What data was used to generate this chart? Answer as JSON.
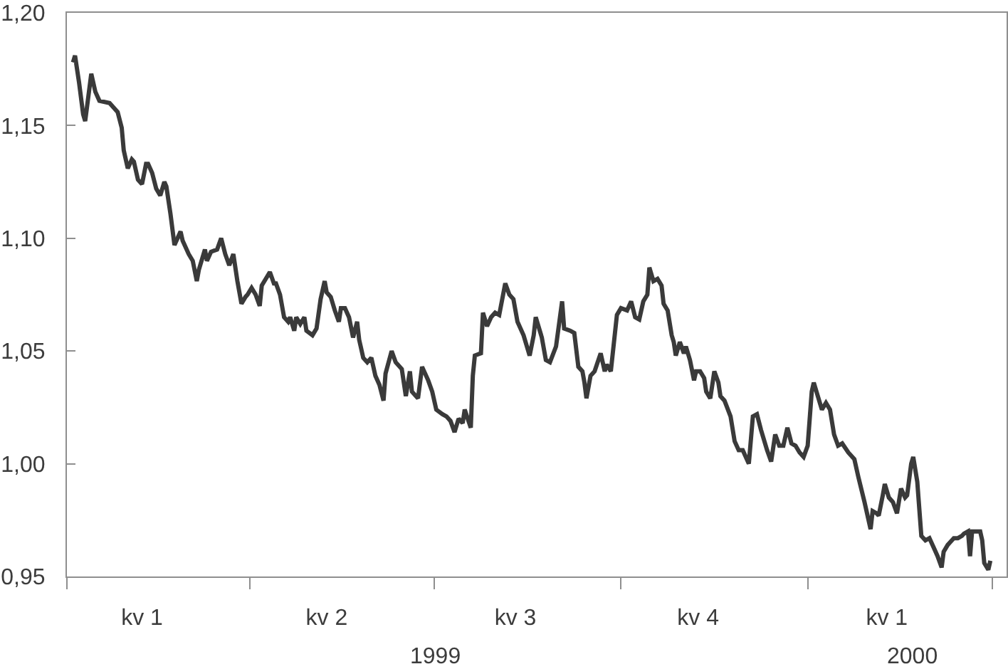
{
  "chart_data": {
    "type": "line",
    "xlim": [
      "1999-01-01",
      "2000-04-08"
    ],
    "xticks": [
      {
        "value": "1999-01-01",
        "label": null
      },
      {
        "value": "1999-04-01",
        "label": null
      },
      {
        "value": "1999-07-01",
        "label": null
      },
      {
        "value": "1999-10-01",
        "label": null
      },
      {
        "value": "2000-01-01",
        "label": null
      },
      {
        "value": "2000-04-01",
        "label": null
      },
      {
        "value": "1999-02-07",
        "label": "kv 1"
      },
      {
        "value": "1999-05-09",
        "label": "kv 2"
      },
      {
        "value": "1999-08-10",
        "label": "kv 3"
      },
      {
        "value": "1999-11-08",
        "label": "kv 4"
      },
      {
        "value": "2000-02-09",
        "label": "kv 1"
      }
    ],
    "x2lim": [
      "1999-01-01",
      "2000-04-08"
    ],
    "x2ticks": [
      {
        "value": "1999-07-02",
        "label": "1999"
      },
      {
        "value": "2000-02-22",
        "label": "2000"
      }
    ],
    "ylim": [
      0.95,
      1.2
    ],
    "yticks": [
      {
        "value": 0.95,
        "label": "0,95"
      },
      {
        "value": 1.0,
        "label": "1,00"
      },
      {
        "value": 1.05,
        "label": "1,05"
      },
      {
        "value": 1.1,
        "label": "1,10"
      },
      {
        "value": 1.15,
        "label": "1,15"
      },
      {
        "value": 1.2,
        "label": "1,20"
      }
    ],
    "x": [
      "1999-01-04",
      "1999-01-05",
      "1999-01-07",
      "1999-01-09",
      "1999-01-10",
      "1999-01-13",
      "1999-01-15",
      "1999-01-17",
      "1999-01-22",
      "1999-01-26",
      "1999-01-28",
      "1999-01-29",
      "1999-01-31",
      "1999-02-02",
      "1999-02-03",
      "1999-02-05",
      "1999-02-07",
      "1999-02-09",
      "1999-02-10",
      "1999-02-12",
      "1999-02-14",
      "1999-02-16",
      "1999-02-18",
      "1999-02-19",
      "1999-02-21",
      "1999-02-23",
      "1999-02-26",
      "1999-02-27",
      "1999-03-02",
      "1999-03-04",
      "1999-03-06",
      "1999-03-07",
      "1999-03-10",
      "1999-03-11",
      "1999-03-13",
      "1999-03-16",
      "1999-03-18",
      "1999-03-20",
      "1999-03-22",
      "1999-03-24",
      "1999-03-26",
      "1999-03-28",
      "1999-03-30",
      "1999-03-31",
      "1999-04-02",
      "1999-04-04",
      "1999-04-06",
      "1999-04-07",
      "1999-04-09",
      "1999-04-11",
      "1999-04-13",
      "1999-04-14",
      "1999-04-16",
      "1999-04-18",
      "1999-04-20",
      "1999-04-21",
      "1999-04-23",
      "1999-04-24",
      "1999-04-26",
      "1999-04-28",
      "1999-04-29",
      "1999-05-02",
      "1999-05-04",
      "1999-05-06",
      "1999-05-08",
      "1999-05-09",
      "1999-05-11",
      "1999-05-13",
      "1999-05-15",
      "1999-05-16",
      "1999-05-18",
      "1999-05-20",
      "1999-05-22",
      "1999-05-24",
      "1999-05-25",
      "1999-05-27",
      "1999-05-29",
      "1999-05-31",
      "1999-06-02",
      "1999-06-04",
      "1999-06-06",
      "1999-06-07",
      "1999-06-10",
      "1999-06-12",
      "1999-06-15",
      "1999-06-17",
      "1999-06-19",
      "1999-06-20",
      "1999-06-23",
      "1999-06-25",
      "1999-06-28",
      "1999-06-30",
      "1999-07-02",
      "1999-07-05",
      "1999-07-07",
      "1999-07-09",
      "1999-07-11",
      "1999-07-13",
      "1999-07-15",
      "1999-07-16",
      "1999-07-19",
      "1999-07-20",
      "1999-07-21",
      "1999-07-24",
      "1999-07-25",
      "1999-07-27",
      "1999-07-29",
      "1999-07-31",
      "1999-08-02",
      "1999-08-05",
      "1999-08-07",
      "1999-08-09",
      "1999-08-11",
      "1999-08-14",
      "1999-08-17",
      "1999-08-19",
      "1999-08-20",
      "1999-08-23",
      "1999-08-25",
      "1999-08-27",
      "1999-08-30",
      "1999-09-02",
      "1999-09-03",
      "1999-09-06",
      "1999-09-08",
      "1999-09-10",
      "1999-09-12",
      "1999-09-13",
      "1999-09-14",
      "1999-09-16",
      "1999-09-18",
      "1999-09-21",
      "1999-09-23",
      "1999-09-24",
      "1999-09-26",
      "1999-09-29",
      "1999-10-01",
      "1999-10-04",
      "1999-10-06",
      "1999-10-08",
      "1999-10-10",
      "1999-10-12",
      "1999-10-14",
      "1999-10-15",
      "1999-10-17",
      "1999-10-19",
      "1999-10-21",
      "1999-10-22",
      "1999-10-24",
      "1999-10-26",
      "1999-10-27",
      "1999-10-28",
      "1999-10-30",
      "1999-11-01",
      "1999-11-02",
      "1999-11-04",
      "1999-11-06",
      "1999-11-07",
      "1999-11-09",
      "1999-11-11",
      "1999-11-12",
      "1999-11-14",
      "1999-11-16",
      "1999-11-18",
      "1999-11-19",
      "1999-11-21",
      "1999-11-24",
      "1999-11-26",
      "1999-11-28",
      "1999-11-30",
      "1999-12-03",
      "1999-12-05",
      "1999-12-07",
      "1999-12-09",
      "1999-12-12",
      "1999-12-14",
      "1999-12-16",
      "1999-12-18",
      "1999-12-20",
      "1999-12-22",
      "1999-12-24",
      "1999-12-26",
      "1999-12-28",
      "1999-12-30",
      "2000-01-01",
      "2000-01-03",
      "2000-01-04",
      "2000-01-06",
      "2000-01-08",
      "2000-01-10",
      "2000-01-12",
      "2000-01-14",
      "2000-01-16",
      "2000-01-18",
      "2000-01-21",
      "2000-01-24",
      "2000-01-26",
      "2000-01-29",
      "2000-02-01",
      "2000-02-02",
      "2000-02-04",
      "2000-02-05",
      "2000-02-07",
      "2000-02-08",
      "2000-02-10",
      "2000-02-12",
      "2000-02-14",
      "2000-02-16",
      "2000-02-18",
      "2000-02-19",
      "2000-02-21",
      "2000-02-22",
      "2000-02-24",
      "2000-02-26",
      "2000-02-28",
      "2000-03-01",
      "2000-03-03",
      "2000-03-05",
      "2000-03-07",
      "2000-03-08",
      "2000-03-10",
      "2000-03-11",
      "2000-03-13",
      "2000-03-15",
      "2000-03-17",
      "2000-03-18",
      "2000-03-20",
      "2000-03-21",
      "2000-03-22",
      "2000-03-24",
      "2000-03-26",
      "2000-03-27",
      "2000-03-28",
      "2000-03-30",
      "2000-03-31"
    ],
    "series": [
      {
        "color": "#3a3a3a",
        "values": [
          1.178,
          1.181,
          1.169,
          1.155,
          1.152,
          1.173,
          1.165,
          1.161,
          1.16,
          1.156,
          1.149,
          1.139,
          1.131,
          1.135,
          1.134,
          1.126,
          1.124,
          1.133,
          1.133,
          1.129,
          1.122,
          1.119,
          1.125,
          1.123,
          1.111,
          1.097,
          1.103,
          1.099,
          1.093,
          1.09,
          1.081,
          1.086,
          1.095,
          1.09,
          1.094,
          1.095,
          1.1,
          1.093,
          1.088,
          1.093,
          1.081,
          1.071,
          1.074,
          1.075,
          1.078,
          1.075,
          1.07,
          1.079,
          1.082,
          1.085,
          1.08,
          1.08,
          1.075,
          1.065,
          1.063,
          1.065,
          1.059,
          1.065,
          1.062,
          1.065,
          1.059,
          1.057,
          1.06,
          1.073,
          1.081,
          1.076,
          1.074,
          1.068,
          1.063,
          1.069,
          1.069,
          1.065,
          1.056,
          1.063,
          1.055,
          1.047,
          1.045,
          1.047,
          1.039,
          1.035,
          1.028,
          1.04,
          1.05,
          1.045,
          1.042,
          1.03,
          1.041,
          1.032,
          1.029,
          1.043,
          1.037,
          1.032,
          1.024,
          1.022,
          1.021,
          1.019,
          1.014,
          1.02,
          1.018,
          1.024,
          1.016,
          1.039,
          1.048,
          1.049,
          1.067,
          1.061,
          1.065,
          1.067,
          1.066,
          1.08,
          1.075,
          1.073,
          1.063,
          1.057,
          1.048,
          1.057,
          1.065,
          1.056,
          1.046,
          1.045,
          1.052,
          1.072,
          1.06,
          1.059,
          1.058,
          1.043,
          1.041,
          1.036,
          1.029,
          1.039,
          1.041,
          1.049,
          1.041,
          1.044,
          1.041,
          1.066,
          1.069,
          1.068,
          1.072,
          1.065,
          1.064,
          1.072,
          1.075,
          1.087,
          1.081,
          1.082,
          1.079,
          1.071,
          1.068,
          1.057,
          1.054,
          1.048,
          1.054,
          1.049,
          1.052,
          1.046,
          1.037,
          1.041,
          1.041,
          1.038,
          1.032,
          1.029,
          1.041,
          1.036,
          1.03,
          1.028,
          1.021,
          1.01,
          1.006,
          1.006,
          1.0,
          1.021,
          1.022,
          1.015,
          1.006,
          1.001,
          1.013,
          1.008,
          1.008,
          1.016,
          1.009,
          1.008,
          1.005,
          1.003,
          1.008,
          1.032,
          1.036,
          1.03,
          1.024,
          1.027,
          1.024,
          1.013,
          1.008,
          1.009,
          1.005,
          1.002,
          0.994,
          0.983,
          0.971,
          0.979,
          0.978,
          0.977,
          0.986,
          0.991,
          0.985,
          0.983,
          0.978,
          0.989,
          0.985,
          0.986,
          1.0,
          1.003,
          0.992,
          0.968,
          0.966,
          0.967,
          0.963,
          0.959,
          0.954,
          0.961,
          0.964,
          0.965,
          0.967,
          0.967,
          0.968,
          0.969,
          0.97,
          0.959,
          0.97,
          0.97,
          0.97,
          0.966,
          0.956,
          0.953,
          0.957
        ]
      }
    ]
  }
}
